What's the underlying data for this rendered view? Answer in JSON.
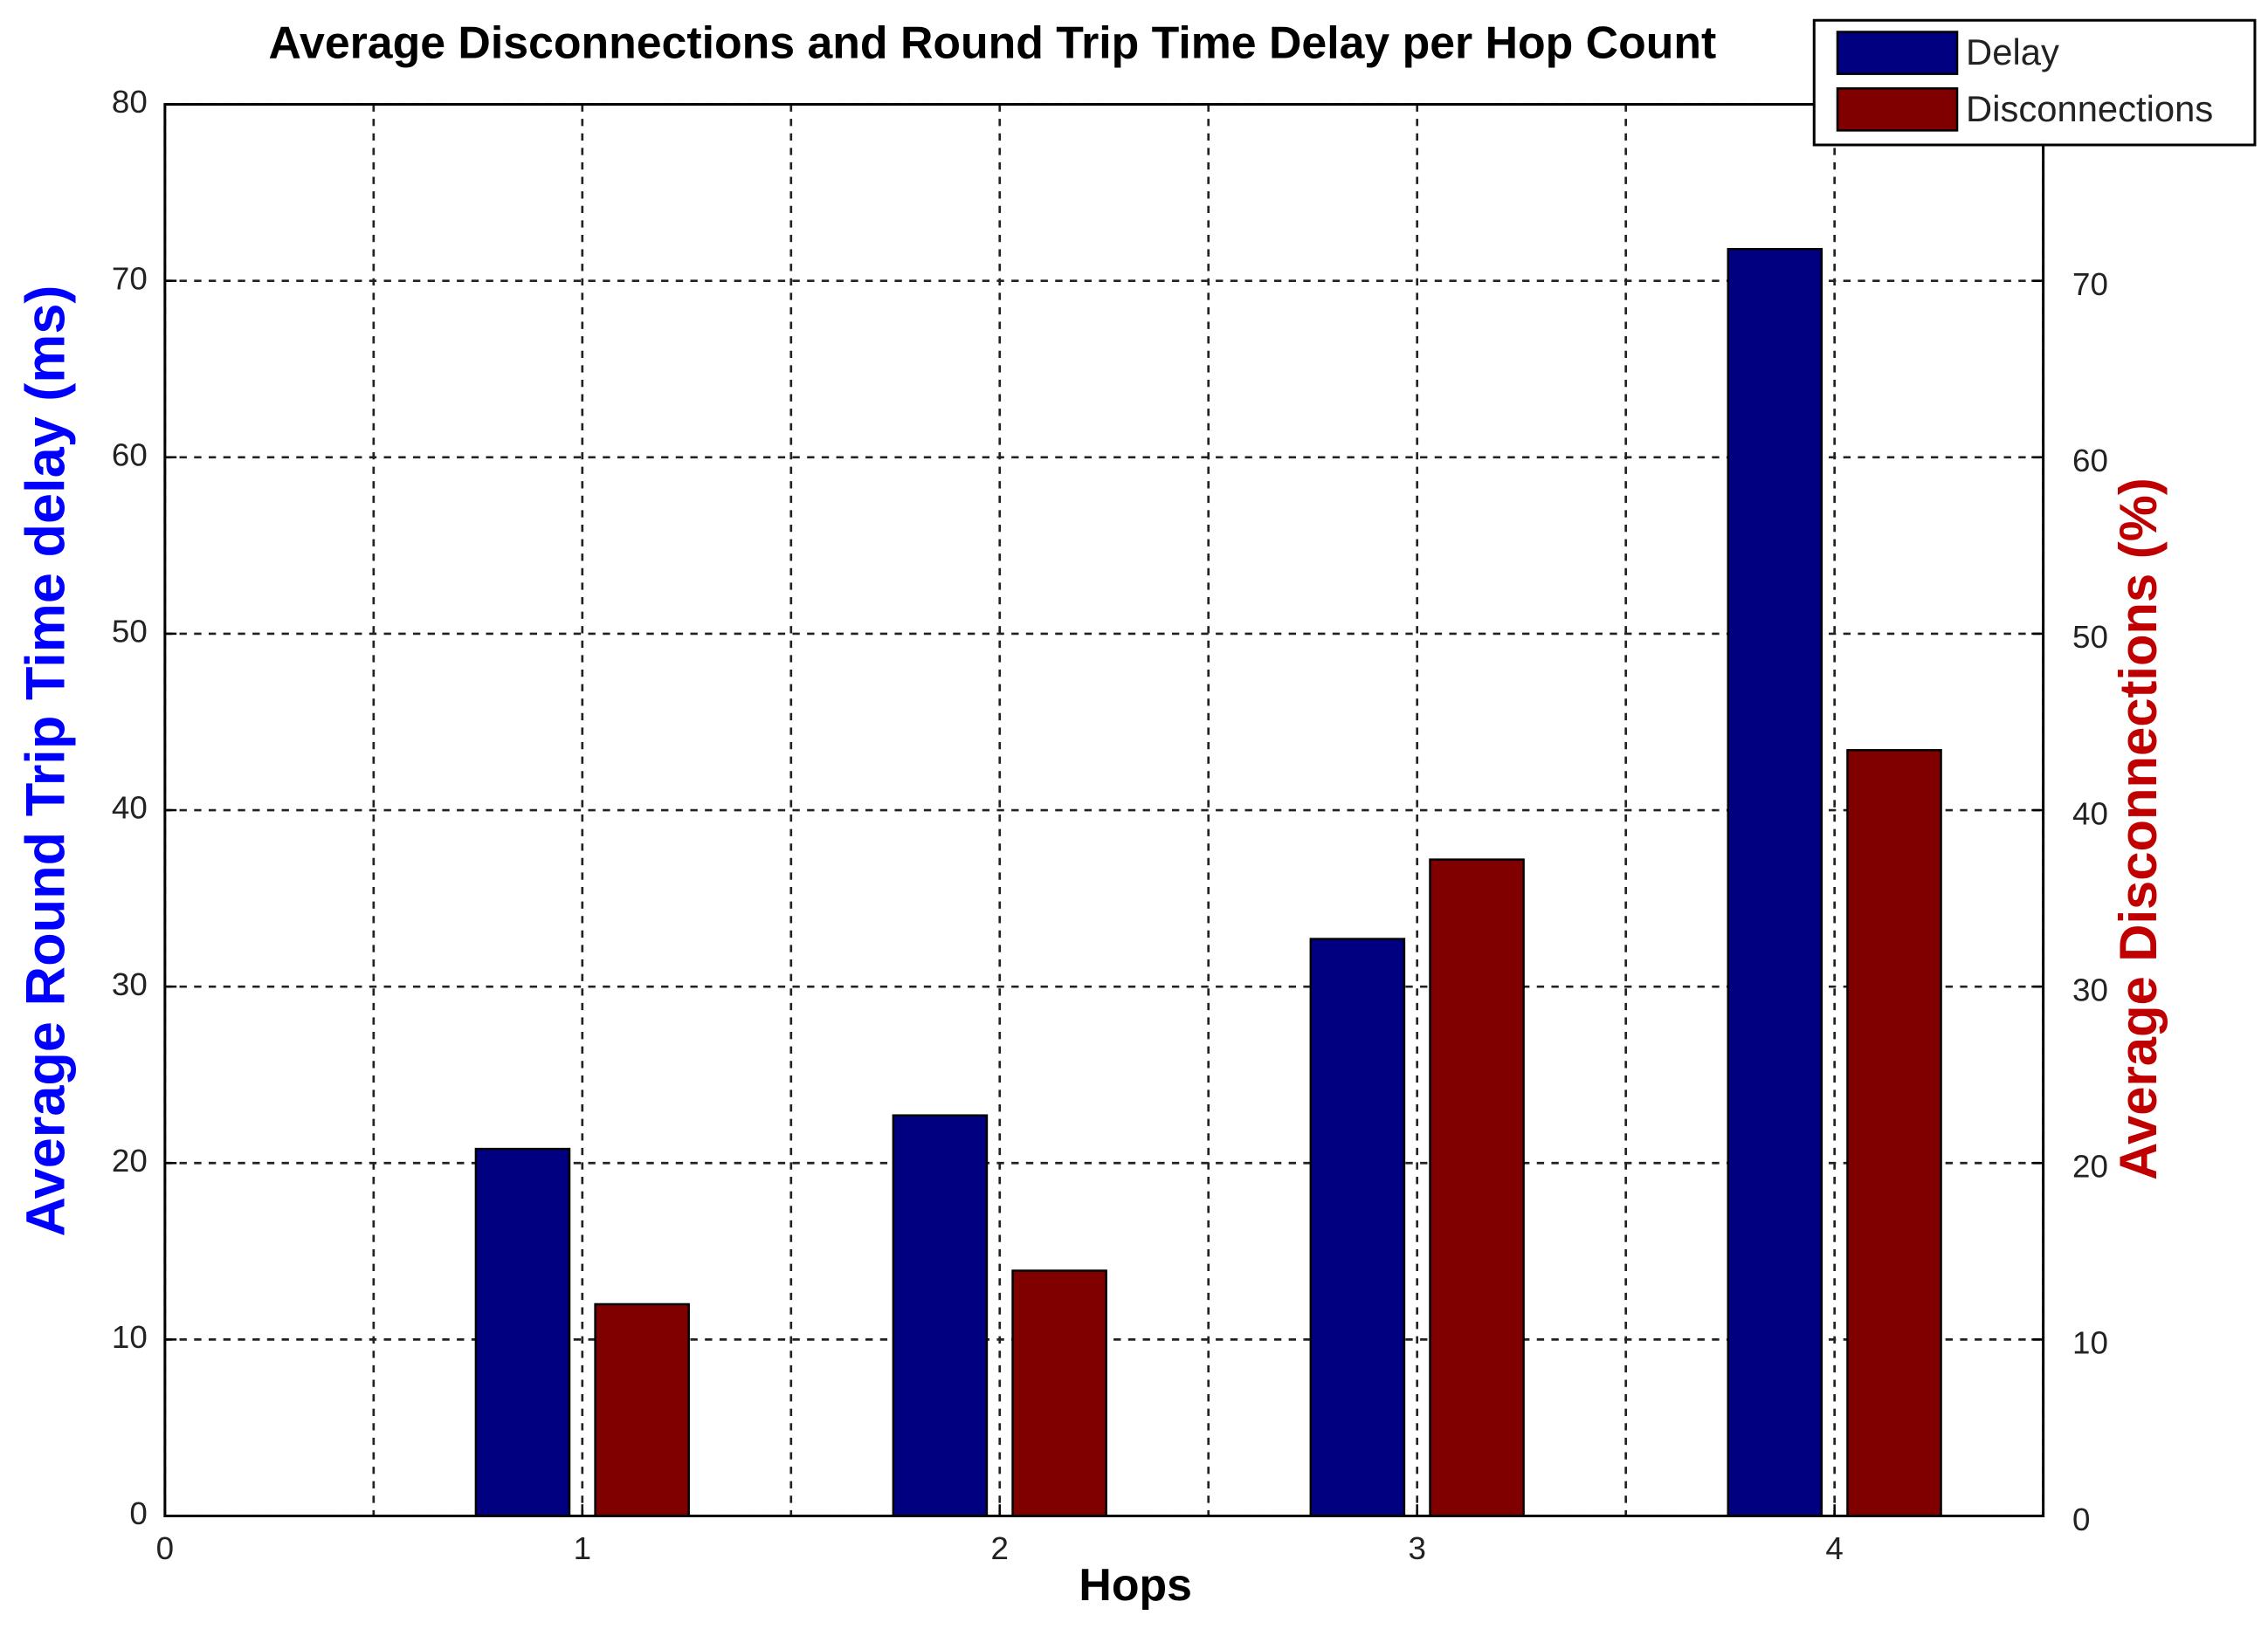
{
  "chart_data": {
    "type": "bar",
    "title": "Average Disconnections and Round Trip Time Delay per Hop Count",
    "x_label": "Hops",
    "y_label": "Average Round Trip Time delay (ms)",
    "y2_label": "Average Disconnections (%)",
    "x": [
      1,
      2,
      3,
      4
    ],
    "series": [
      {
        "name": "Delay",
        "color": "#000080",
        "values": [
          20.8,
          22.7,
          32.7,
          71.8
        ]
      },
      {
        "name": "Disconnections",
        "color": "#800000",
        "axis": "y2",
        "values": [
          12,
          13.9,
          37.2,
          43.4
        ]
      }
    ],
    "xlim": [
      0,
      4.5
    ],
    "xticks": [
      0,
      1,
      2,
      3,
      4
    ],
    "ylim": [
      0,
      80
    ],
    "yticks": [
      0,
      10,
      20,
      30,
      40,
      50,
      60,
      70,
      80
    ],
    "y2lim": [
      0,
      80
    ],
    "y2ticks": [
      0,
      10,
      20,
      30,
      40,
      50,
      60,
      70
    ],
    "grid": true,
    "legend": "top-right"
  }
}
